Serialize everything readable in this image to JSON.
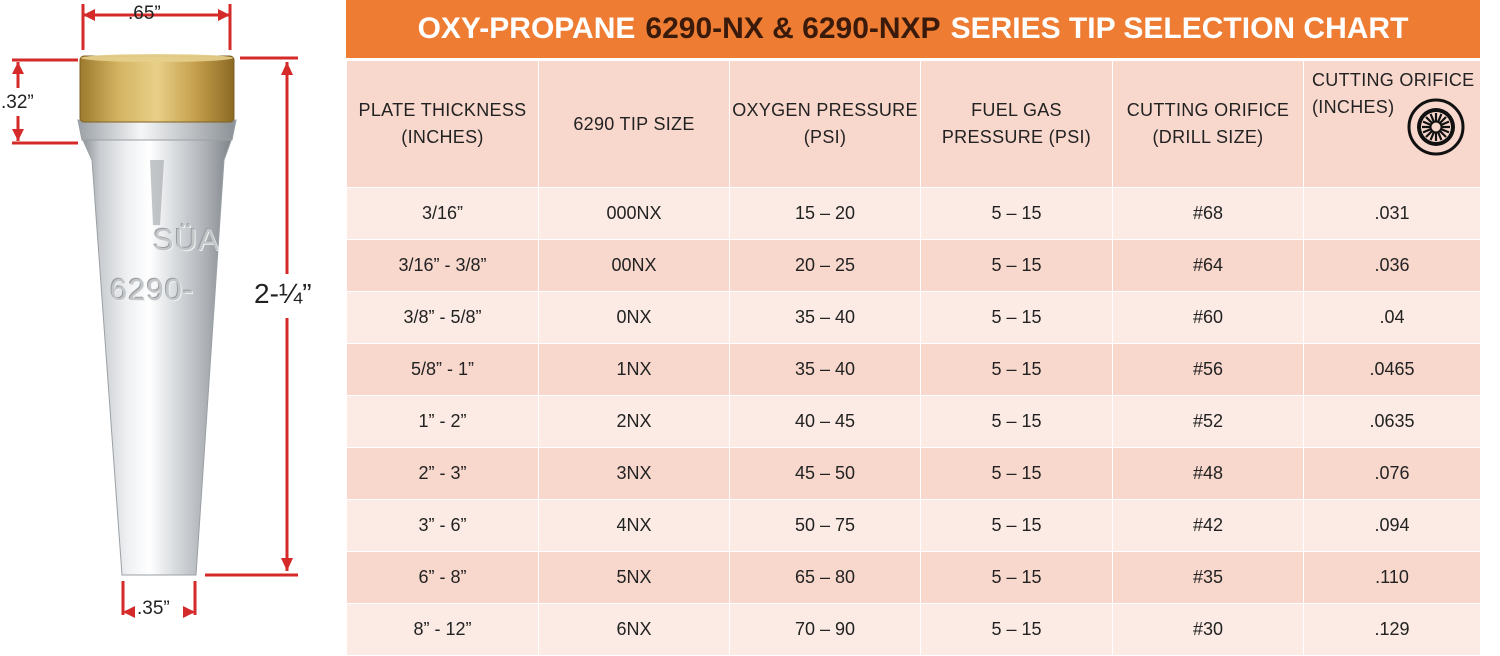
{
  "dimensions": {
    "top_width": ".65”",
    "brass_height": ".32”",
    "overall_length": "2-¼”",
    "bottom_width": ".35”"
  },
  "engraving": {
    "brand": "SÜA",
    "model": "6290-"
  },
  "chart": {
    "title_part1": "OXY-PROPANE",
    "title_part2": "6290-NX & 6290-NXP",
    "title_part3": "SERIES TIP SELECTION CHART",
    "header_color": "#ee7c33",
    "icon": "cutting-orifice-icon",
    "columns": [
      "PLATE THICKNESS (INCHES)",
      "6290 TIP SIZE",
      "OXYGEN PRESSURE (PSI)",
      "FUEL GAS PRESSURE (PSI)",
      "CUTTING ORIFICE (DRILL SIZE)",
      "CUTTING ORIFICE (INCHES)"
    ],
    "rows": [
      [
        "3/16”",
        "000NX",
        "15 – 20",
        "5 – 15",
        "#68",
        ".031"
      ],
      [
        "3/16” - 3/8”",
        "00NX",
        "20 – 25",
        "5 – 15",
        "#64",
        ".036"
      ],
      [
        "3/8” - 5/8”",
        "0NX",
        "35 – 40",
        "5 – 15",
        "#60",
        ".04"
      ],
      [
        "5/8” - 1”",
        "1NX",
        "35 – 40",
        "5 – 15",
        "#56",
        ".0465"
      ],
      [
        "1” - 2”",
        "2NX",
        "40 – 45",
        "5 – 15",
        "#52",
        ".0635"
      ],
      [
        "2” - 3”",
        "3NX",
        "45 – 50",
        "5 – 15",
        "#48",
        ".076"
      ],
      [
        "3” - 6”",
        "4NX",
        "50 – 75",
        "5 – 15",
        "#42",
        ".094"
      ],
      [
        "6” - 8”",
        "5NX",
        "65 – 80",
        "5 – 15",
        "#35",
        ".110"
      ],
      [
        "8” - 12”",
        "6NX",
        "70 – 90",
        "5 – 15",
        "#30",
        ".129"
      ]
    ]
  }
}
